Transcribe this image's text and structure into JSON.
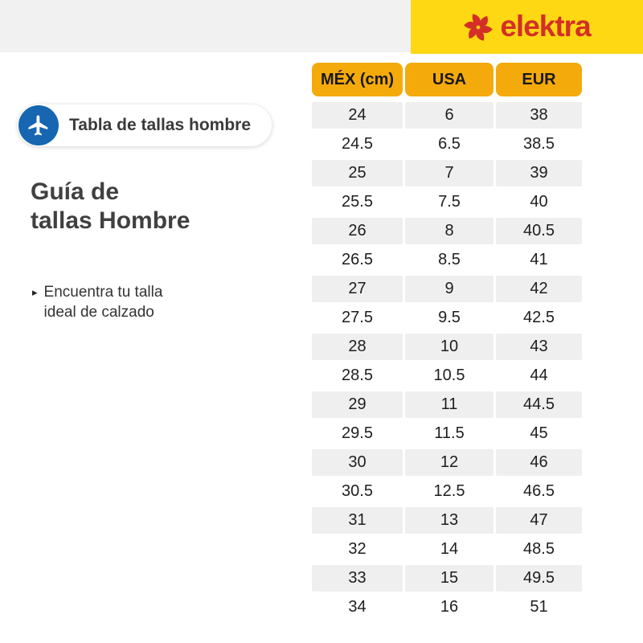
{
  "brand": {
    "logo_text": "elektra",
    "logo_icon": "elektra-pinwheel",
    "brand_red": "#D32F27",
    "banner_yellow": "#FFD814"
  },
  "intro": {
    "badge_label": "Tabla de tallas hombre",
    "badge_icon": "airplane",
    "badge_icon_bg": "#1666B2",
    "title_line1": "Guía de",
    "title_line2": "tallas Hombre",
    "bullet_marker": "▸",
    "bullet_line1": "Encuentra tu talla",
    "bullet_line2": "ideal de calzado"
  },
  "size_table": {
    "header_bg": "#F5AA0B",
    "alt_row_bg": "#EFEFEF",
    "columns": [
      "MÉX (cm)",
      "USA",
      "EUR"
    ],
    "rows": [
      [
        "24",
        "6",
        "38"
      ],
      [
        "24.5",
        "6.5",
        "38.5"
      ],
      [
        "25",
        "7",
        "39"
      ],
      [
        "25.5",
        "7.5",
        "40"
      ],
      [
        "26",
        "8",
        "40.5"
      ],
      [
        "26.5",
        "8.5",
        "41"
      ],
      [
        "27",
        "9",
        "42"
      ],
      [
        "27.5",
        "9.5",
        "42.5"
      ],
      [
        "28",
        "10",
        "43"
      ],
      [
        "28.5",
        "10.5",
        "44"
      ],
      [
        "29",
        "11",
        "44.5"
      ],
      [
        "29.5",
        "11.5",
        "45"
      ],
      [
        "30",
        "12",
        "46"
      ],
      [
        "30.5",
        "12.5",
        "46.5"
      ],
      [
        "31",
        "13",
        "47"
      ],
      [
        "32",
        "14",
        "48.5"
      ],
      [
        "33",
        "15",
        "49.5"
      ],
      [
        "34",
        "16",
        "51"
      ]
    ]
  }
}
